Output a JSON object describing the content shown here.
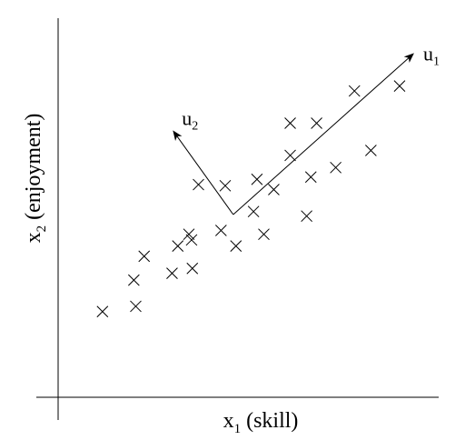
{
  "chart_data": {
    "type": "scatter",
    "title": "",
    "xlabel": {
      "base": "x",
      "sub": "1",
      "text": " (skill)"
    },
    "ylabel": {
      "base": "x",
      "sub": "2",
      "text": " (enjoyment)"
    },
    "xlim": [
      0,
      100
    ],
    "ylim": [
      0,
      100
    ],
    "grid": false,
    "marker": "x",
    "points": [
      {
        "x": 11.6,
        "y": 22.6
      },
      {
        "x": 20.3,
        "y": 24.0
      },
      {
        "x": 19.8,
        "y": 30.9
      },
      {
        "x": 22.5,
        "y": 37.2
      },
      {
        "x": 29.8,
        "y": 32.7
      },
      {
        "x": 31.3,
        "y": 39.9
      },
      {
        "x": 34.2,
        "y": 43.0
      },
      {
        "x": 34.9,
        "y": 41.5
      },
      {
        "x": 35.1,
        "y": 34.0
      },
      {
        "x": 36.7,
        "y": 56.1
      },
      {
        "x": 42.6,
        "y": 44.0
      },
      {
        "x": 43.7,
        "y": 55.8
      },
      {
        "x": 46.5,
        "y": 39.9
      },
      {
        "x": 51.1,
        "y": 49.0
      },
      {
        "x": 52.0,
        "y": 57.5
      },
      {
        "x": 53.8,
        "y": 43.0
      },
      {
        "x": 56.4,
        "y": 54.8
      },
      {
        "x": 60.7,
        "y": 63.8
      },
      {
        "x": 60.7,
        "y": 72.3
      },
      {
        "x": 65.0,
        "y": 47.8
      },
      {
        "x": 66.1,
        "y": 58.1
      },
      {
        "x": 67.6,
        "y": 72.3
      },
      {
        "x": 72.6,
        "y": 60.6
      },
      {
        "x": 77.5,
        "y": 80.8
      },
      {
        "x": 81.8,
        "y": 65.1
      },
      {
        "x": 89.3,
        "y": 82.1
      }
    ],
    "vectors": [
      {
        "label": {
          "base": "u",
          "sub": "1"
        },
        "from": {
          "x": 45.8,
          "y": 48.2
        },
        "to": {
          "x": 93.1,
          "y": 90.8
        }
      },
      {
        "label": {
          "base": "u",
          "sub": "2"
        },
        "from": {
          "x": 45.8,
          "y": 48.2
        },
        "to": {
          "x": 30.0,
          "y": 70.4
        }
      }
    ]
  }
}
